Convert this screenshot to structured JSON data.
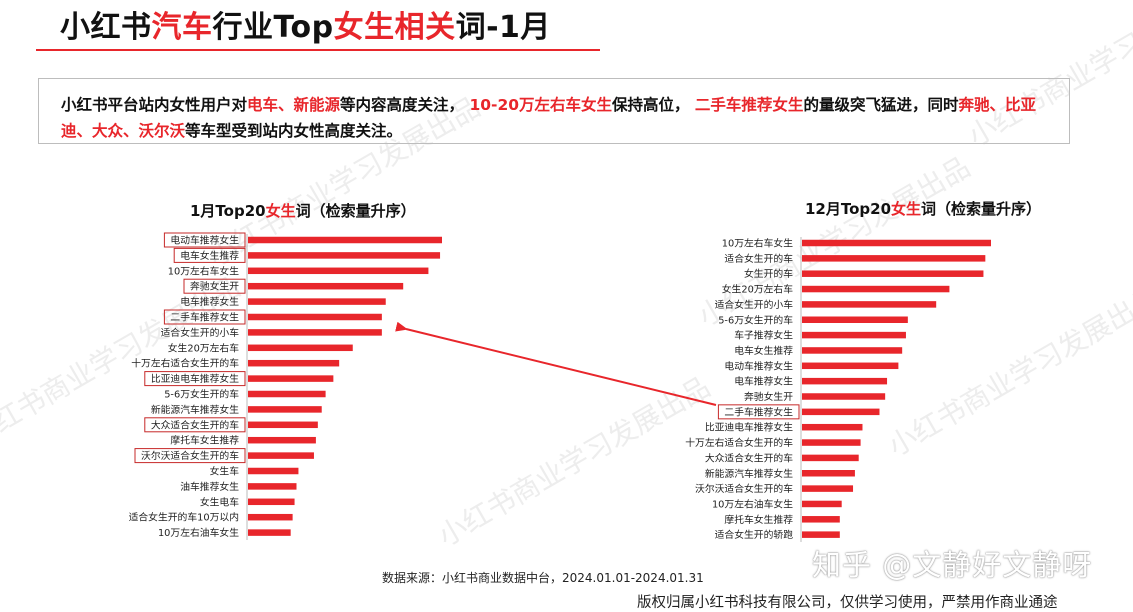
{
  "header": {
    "title_parts": [
      "小红书",
      "汽车",
      "行业Top",
      "女生相关",
      "词-1月"
    ]
  },
  "summary": {
    "segments": [
      {
        "text": "小红书平台站内女性用户对",
        "red": false
      },
      {
        "text": "电车、新能源",
        "red": true
      },
      {
        "text": "等内容高度关注， ",
        "red": false
      },
      {
        "text": "10-20万左右车女生",
        "red": true
      },
      {
        "text": "保持高位， ",
        "red": false
      },
      {
        "text": "二手车推荐女生",
        "red": true
      },
      {
        "text": "的量级突飞猛进，同时",
        "red": false
      },
      {
        "text": "奔驰、比亚迪、大众、沃尔沃",
        "red": true
      },
      {
        "text": "等车型受到站内女性高度关注。",
        "red": false
      }
    ]
  },
  "chart_data": [
    {
      "type": "bar",
      "orientation": "horizontal",
      "title_parts": [
        "1月Top20",
        "女生",
        "词（检索量升序）"
      ],
      "categories": [
        "电动车推荐女生",
        "电车女生推荐",
        "10万左右车女生",
        "奔驰女生开",
        "电车推荐女生",
        "二手车推荐女生",
        "适合女生开的小车",
        "女生20万左右车",
        "十万左右适合女生开的车",
        "比亚迪电车推荐女生",
        "5-6万女生开的车",
        "新能源汽车推荐女生",
        "大众适合女生开的车",
        "摩托车女生推荐",
        "沃尔沃适合女生开的车",
        "女生车",
        "油车推荐女生",
        "女生电车",
        "适合女生开的车10万以内",
        "10万左右油车女生"
      ],
      "values": [
        100,
        99,
        93,
        80,
        71,
        69,
        69,
        54,
        47,
        44,
        40,
        38,
        36,
        35,
        34,
        26,
        25,
        24,
        23,
        22
      ],
      "highlighted": [
        "电动车推荐女生",
        "电车女生推荐",
        "奔驰女生开",
        "二手车推荐女生",
        "比亚迪电车推荐女生",
        "大众适合女生开的车",
        "沃尔沃适合女生开的车"
      ],
      "bar_color": "#e8262b"
    },
    {
      "type": "bar",
      "orientation": "horizontal",
      "title_parts": [
        "12月Top20",
        "女生",
        "词（检索量升序）"
      ],
      "categories": [
        "10万左右车女生",
        "适合女生开的车",
        "女生开的车",
        "女生20万左右车",
        "适合女生开的小车",
        "5-6万女生开的车",
        "车子推荐女生",
        "电车女生推荐",
        "电动车推荐女生",
        "电车推荐女生",
        "奔驰女生开",
        "二手车推荐女生",
        "比亚迪电车推荐女生",
        "十万左右适合女生开的车",
        "大众适合女生开的车",
        "新能源汽车推荐女生",
        "沃尔沃适合女生开的车",
        "10万左右油车女生",
        "摩托车女生推荐",
        "适合女生开的轿跑"
      ],
      "values": [
        100,
        97,
        96,
        78,
        71,
        56,
        55,
        53,
        51,
        45,
        44,
        41,
        32,
        31,
        30,
        28,
        27,
        21,
        20,
        20
      ],
      "highlighted": [
        "二手车推荐女生"
      ],
      "bar_color": "#e8262b"
    }
  ],
  "footer": {
    "source": "数据来源：小红书商业数据中台，2024.01.01-2024.01.31",
    "copyright": "版权归属小红书科技有限公司，仅供学习使用，严禁用作商业通途",
    "zhihu_watermark": "知乎 @文静好文静呀",
    "bg_watermark": "小红书商业学习发展出品"
  },
  "colors": {
    "accent": "#e8262b",
    "arrow": "#e8262b",
    "box_border": "#c62828"
  }
}
